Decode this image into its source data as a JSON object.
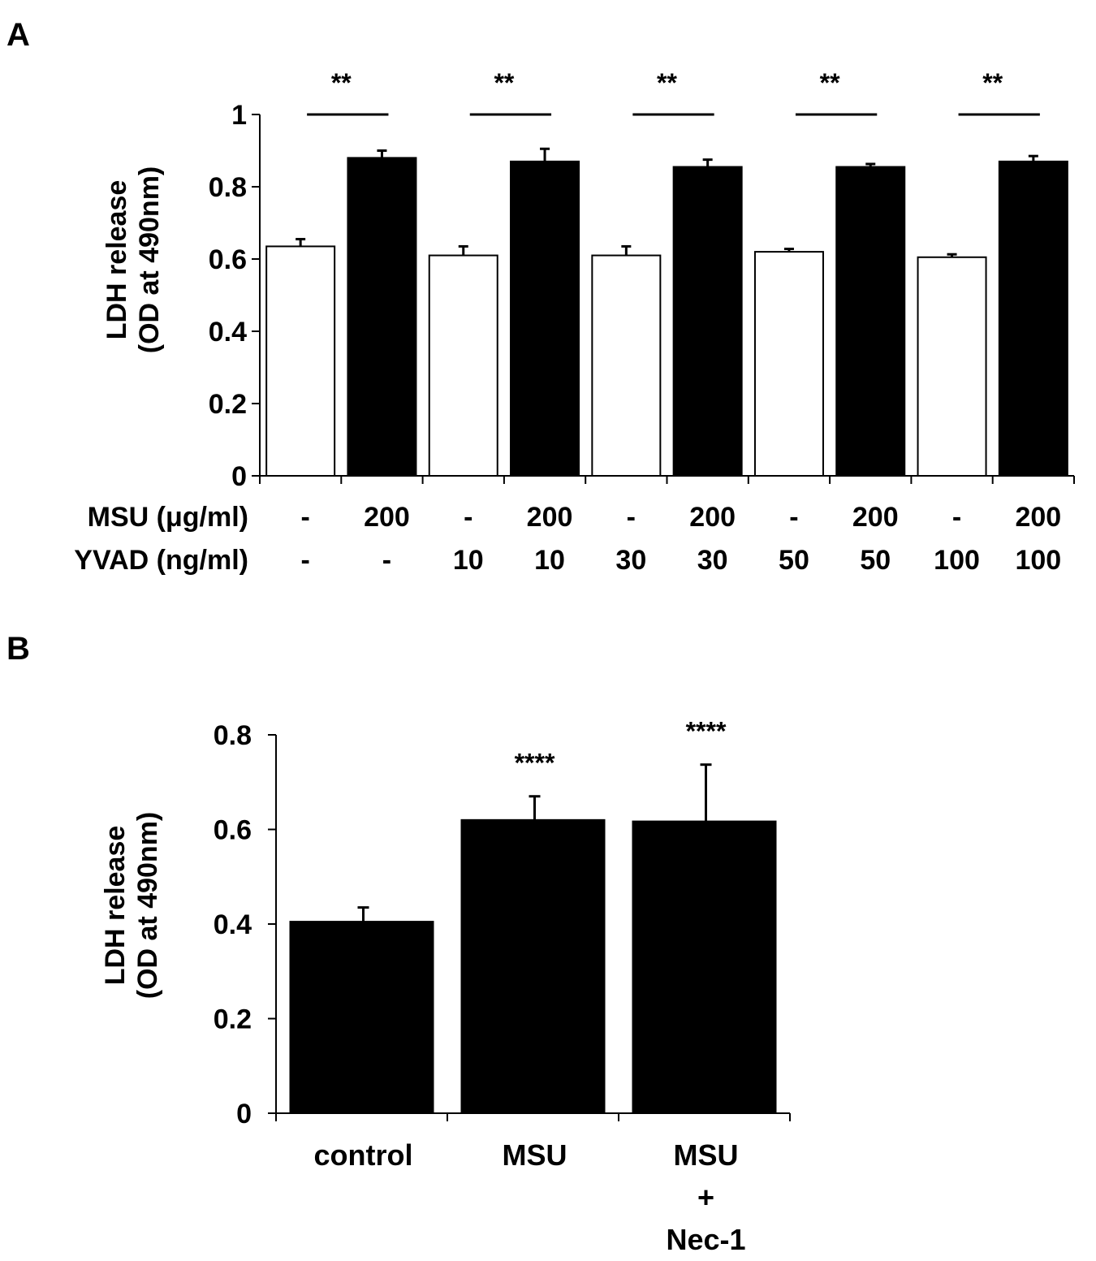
{
  "chart_data": [
    {
      "panel": "A",
      "type": "bar",
      "ylabel": [
        "LDH release",
        "(OD at 490nm)"
      ],
      "ylim": [
        0,
        1
      ],
      "yticks": [
        0,
        0.2,
        0.4,
        0.6,
        0.8,
        1
      ],
      "ytick_labels": [
        "0",
        "0.2",
        "0.4",
        "0.6",
        "0.8",
        "1"
      ],
      "row_labels": [
        "MSU (μg/ml)",
        "YVAD (ng/ml)"
      ],
      "msu_values": [
        "-",
        "200",
        "-",
        "200",
        "-",
        "200",
        "-",
        "200",
        "-",
        "200"
      ],
      "yvad_values": [
        "-",
        "-",
        "10",
        "10",
        "30",
        "30",
        "50",
        "50",
        "100",
        "100"
      ],
      "values": [
        0.635,
        0.88,
        0.61,
        0.87,
        0.61,
        0.855,
        0.62,
        0.855,
        0.605,
        0.87
      ],
      "errors": [
        0.02,
        0.02,
        0.025,
        0.035,
        0.025,
        0.02,
        0.008,
        0.008,
        0.008,
        0.015
      ],
      "fills": [
        "#ffffff",
        "#000000",
        "#ffffff",
        "#000000",
        "#ffffff",
        "#000000",
        "#ffffff",
        "#000000",
        "#ffffff",
        "#000000"
      ],
      "significance": [
        "**",
        "**",
        "**",
        "**",
        "**"
      ]
    },
    {
      "panel": "B",
      "type": "bar",
      "ylabel": [
        "LDH release",
        "(OD at 490nm)"
      ],
      "ylim": [
        0,
        0.8
      ],
      "yticks": [
        0,
        0.2,
        0.4,
        0.6,
        0.8
      ],
      "ytick_labels": [
        "0",
        "0.2",
        "0.4",
        "0.6",
        "0.8"
      ],
      "categories": [
        [
          "control"
        ],
        [
          "MSU"
        ],
        [
          "MSU",
          "+",
          "Nec-1"
        ]
      ],
      "values": [
        0.405,
        0.62,
        0.617
      ],
      "errors": [
        0.03,
        0.05,
        0.12
      ],
      "fills": [
        "#000000",
        "#000000",
        "#000000"
      ],
      "significance": [
        "",
        "****",
        "****"
      ]
    }
  ]
}
